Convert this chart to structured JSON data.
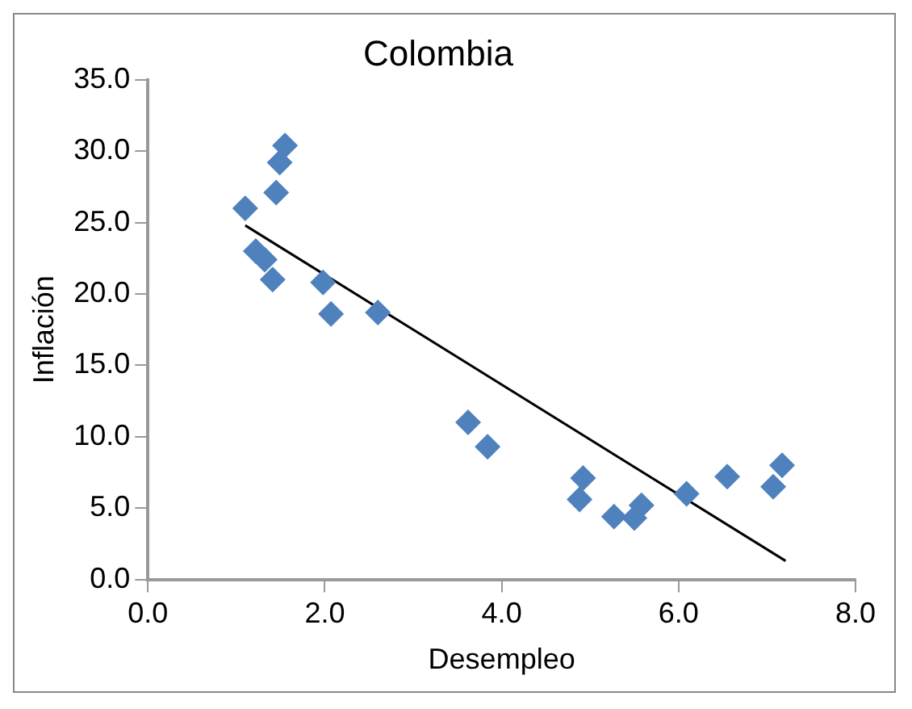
{
  "chart_data": {
    "type": "scatter",
    "title": "Colombia",
    "xlabel": "Desempleo",
    "ylabel": "Inflación",
    "series": [
      {
        "color": "#4f81bd",
        "marker": "diamond",
        "x": [
          1.1,
          1.55,
          1.49,
          1.45,
          1.22,
          1.32,
          1.41,
          1.98,
          2.07,
          2.6,
          3.62,
          3.84,
          4.92,
          4.88,
          5.27,
          5.5,
          5.58,
          6.09,
          6.55,
          7.07,
          7.17
        ],
        "values": [
          26.0,
          30.4,
          29.2,
          27.1,
          23.0,
          22.4,
          21.0,
          20.8,
          18.6,
          18.7,
          11.0,
          9.3,
          7.1,
          5.6,
          4.4,
          4.3,
          5.2,
          6.0,
          7.2,
          6.5,
          8.0
        ]
      },
      {
        "type": "line",
        "marker": "none",
        "color": "#000000",
        "x": [
          1.1,
          7.21
        ],
        "values": [
          24.8,
          1.3
        ]
      }
    ],
    "legend": false,
    "grid": false,
    "xlim": [
      0,
      8
    ],
    "xticks": [
      {
        "value": 0,
        "label": "0.0"
      },
      {
        "value": 2,
        "label": "2.0"
      },
      {
        "value": 4,
        "label": "4.0"
      },
      {
        "value": 6,
        "label": "6.0"
      },
      {
        "value": 8,
        "label": "8.0"
      }
    ],
    "ylim": [
      0,
      35
    ],
    "yticks": [
      {
        "value": 0,
        "label": "0.0"
      },
      {
        "value": 5,
        "label": "5.0"
      },
      {
        "value": 10,
        "label": "10.0"
      },
      {
        "value": 15,
        "label": "15.0"
      },
      {
        "value": 20,
        "label": "20.0"
      },
      {
        "value": 25,
        "label": "25.0"
      },
      {
        "value": 30,
        "label": "30.0"
      },
      {
        "value": 35,
        "label": "35.0"
      }
    ]
  }
}
